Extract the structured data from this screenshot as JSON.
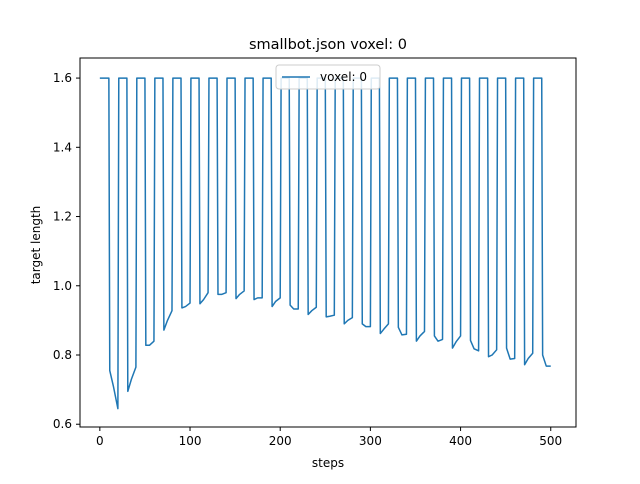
{
  "chart_data": {
    "type": "line",
    "title": "smallbot.json voxel: 0",
    "xlabel": "steps",
    "ylabel": "target length",
    "xlim": [
      -22,
      528
    ],
    "ylim": [
      0.592,
      1.658
    ],
    "x_ticks": [
      0,
      100,
      200,
      300,
      400,
      500
    ],
    "y_ticks": [
      0.6,
      0.8,
      1.0,
      1.2,
      1.4,
      1.6
    ],
    "x_tick_labels": [
      "0",
      "100",
      "200",
      "300",
      "400",
      "500"
    ],
    "y_tick_labels": [
      "0.6",
      "0.8",
      "1.0",
      "1.2",
      "1.4",
      "1.6"
    ],
    "grid": false,
    "legend": {
      "position": "top-center",
      "entries": [
        "voxel: 0"
      ]
    },
    "colors": {
      "series": "#1f77b4"
    },
    "series": [
      {
        "name": "voxel: 0",
        "x": [
          0,
          10,
          11,
          15,
          20,
          21,
          30,
          31,
          35,
          40,
          41,
          50,
          51,
          55,
          60,
          61,
          70,
          71,
          75,
          80,
          81,
          90,
          91,
          95,
          100,
          101,
          110,
          111,
          115,
          120,
          121,
          130,
          131,
          135,
          140,
          141,
          150,
          151,
          155,
          160,
          161,
          170,
          171,
          175,
          180,
          181,
          190,
          191,
          195,
          200,
          201,
          210,
          211,
          215,
          220,
          221,
          230,
          231,
          235,
          240,
          241,
          250,
          251,
          255,
          260,
          261,
          270,
          271,
          275,
          280,
          281,
          290,
          291,
          295,
          300,
          301,
          310,
          311,
          315,
          320,
          321,
          330,
          331,
          335,
          340,
          341,
          350,
          351,
          355,
          360,
          361,
          370,
          371,
          375,
          380,
          381,
          390,
          391,
          395,
          400,
          401,
          410,
          411,
          415,
          420,
          421,
          430,
          431,
          435,
          440,
          441,
          450,
          451,
          455,
          460,
          461,
          470,
          471,
          475,
          480,
          481,
          490,
          491,
          495,
          500
        ],
        "y": [
          1.6,
          1.6,
          0.755,
          0.71,
          0.645,
          1.6,
          1.6,
          0.695,
          0.73,
          0.765,
          1.6,
          1.6,
          0.828,
          0.828,
          0.84,
          1.6,
          1.6,
          0.872,
          0.9,
          0.928,
          1.6,
          1.6,
          0.936,
          0.94,
          0.95,
          1.6,
          1.6,
          0.948,
          0.96,
          0.98,
          1.6,
          1.6,
          0.975,
          0.975,
          0.98,
          1.6,
          1.6,
          0.963,
          0.975,
          0.985,
          1.6,
          1.6,
          0.96,
          0.965,
          0.965,
          1.6,
          1.6,
          0.94,
          0.955,
          0.965,
          1.6,
          1.6,
          0.944,
          0.933,
          0.933,
          1.6,
          1.6,
          0.917,
          0.928,
          0.938,
          1.6,
          1.6,
          0.91,
          0.912,
          0.915,
          1.6,
          1.6,
          0.89,
          0.9,
          0.908,
          1.6,
          1.6,
          0.89,
          0.882,
          0.882,
          1.6,
          1.6,
          0.862,
          0.875,
          0.89,
          1.6,
          1.6,
          0.88,
          0.858,
          0.86,
          1.6,
          1.6,
          0.84,
          0.855,
          0.868,
          1.6,
          1.6,
          0.855,
          0.84,
          0.845,
          1.6,
          1.6,
          0.82,
          0.838,
          0.855,
          1.6,
          1.6,
          0.842,
          0.818,
          0.812,
          1.6,
          1.6,
          0.795,
          0.8,
          0.815,
          1.6,
          1.6,
          0.82,
          0.788,
          0.79,
          1.6,
          1.6,
          0.772,
          0.79,
          0.805,
          1.6,
          1.6,
          0.8,
          0.768,
          0.768
        ]
      }
    ]
  }
}
